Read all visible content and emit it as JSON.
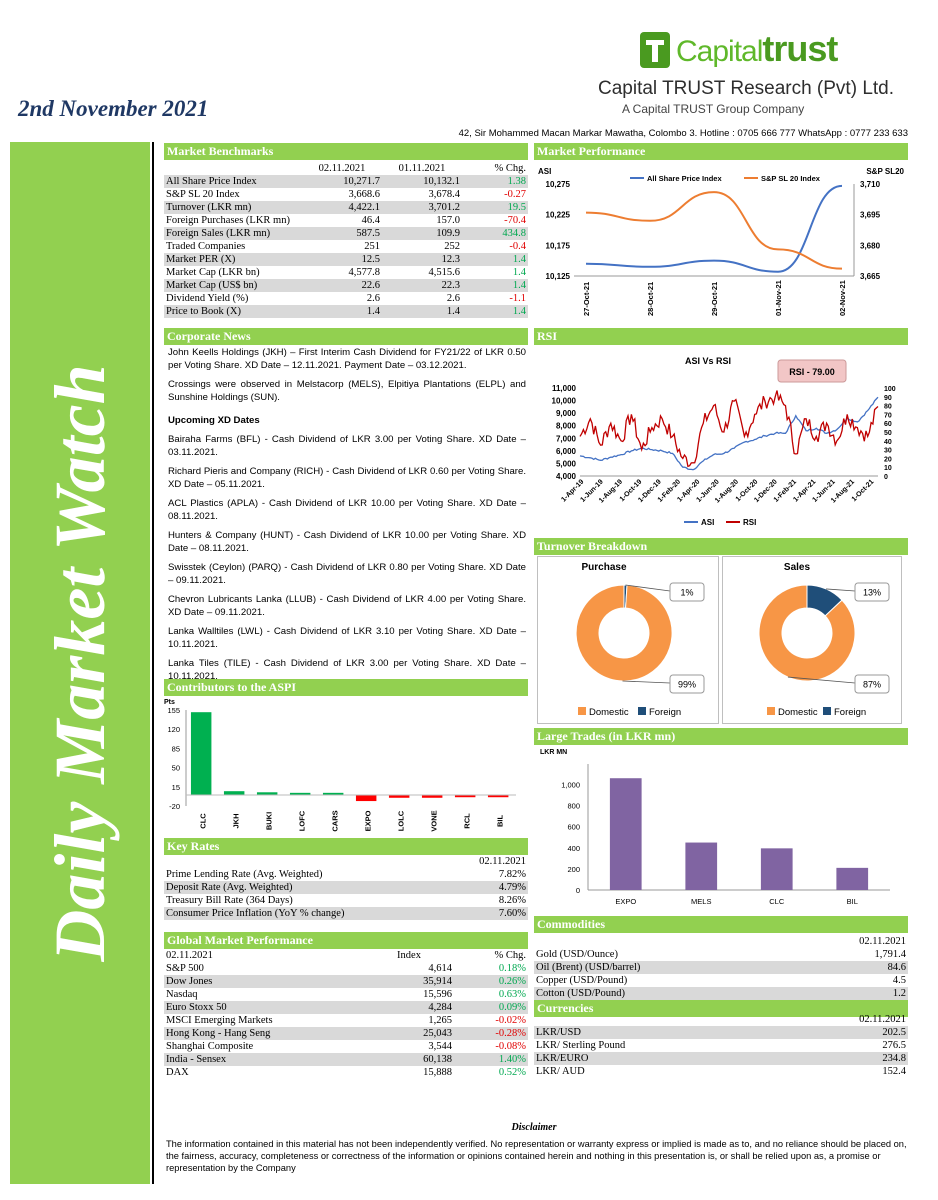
{
  "report": {
    "date": "2nd November 2021",
    "sidebar_title": "Daily Market Watch",
    "address": "42, Sir Mohammed Macan Markar Mawatha, Colombo 3. Hotline : 0705 666 777 WhatsApp : 0777 233 633"
  },
  "logo": {
    "brand_capital": "Capital",
    "brand_trust": "trust",
    "company": "Capital TRUST Research (Pvt) Ltd.",
    "tagline": "A Capital TRUST Group Company",
    "colors": {
      "green": "#4a9a20",
      "light_green": "#92d050"
    }
  },
  "market_benchmarks": {
    "title": "Market Benchmarks",
    "headers": [
      "",
      "02.11.2021",
      "01.11.2021",
      "% Chg."
    ],
    "rows": [
      [
        "All Share Price Index",
        "10,271.7",
        "10,132.1",
        "1.38"
      ],
      [
        "S&P SL 20 Index",
        "3,668.6",
        "3,678.4",
        "-0.27"
      ],
      [
        "Turnover (LKR mn)",
        "4,422.1",
        "3,701.2",
        "19.5"
      ],
      [
        "Foreign Purchases (LKR mn)",
        "46.4",
        "157.0",
        "-70.4"
      ],
      [
        "Foreign Sales (LKR mn)",
        "587.5",
        "109.9",
        "434.8"
      ],
      [
        "Traded Companies",
        "251",
        "252",
        "-0.4"
      ],
      [
        "Market PER (X)",
        "12.5",
        "12.3",
        "1.4"
      ],
      [
        "Market Cap (LKR bn)",
        "4,577.8",
        "4,515.6",
        "1.4"
      ],
      [
        "Market Cap (US$ bn)",
        "22.6",
        "22.3",
        "1.4"
      ],
      [
        "Dividend Yield (%)",
        "2.6",
        "2.6",
        "-1.1"
      ],
      [
        "Price to Book (X)",
        "1.4",
        "1.4",
        "1.4"
      ]
    ]
  },
  "market_performance": {
    "title": "Market Performance",
    "chart_data": {
      "type": "line",
      "x": [
        "27-Oct-21",
        "28-Oct-21",
        "29-Oct-21",
        "01-Nov-21",
        "02-Nov-21"
      ],
      "series": [
        {
          "name": "All Share Price Index",
          "axis": "left",
          "values": [
            10145,
            10140,
            10150,
            10132,
            10272
          ]
        },
        {
          "name": "S&P SL 20 Index",
          "axis": "right",
          "values": [
            3696,
            3692,
            3706,
            3678,
            3668.6
          ]
        }
      ],
      "left_label": "ASI",
      "right_label": "S&P SL20",
      "left_ticks": [
        "10,275",
        "10,225",
        "10,175",
        "10,125"
      ],
      "right_ticks": [
        "3,710",
        "3,695",
        "3,680",
        "3,665"
      ],
      "ylim_left": [
        10125,
        10275
      ],
      "ylim_right": [
        3665,
        3710
      ],
      "colors": [
        "#4472c4",
        "#ed7d31"
      ],
      "legend": "top"
    }
  },
  "rsi": {
    "title": "RSI",
    "chart_data": {
      "type": "line",
      "title": "ASI Vs RSI",
      "annotation": "RSI - 79.00",
      "x_ticks": [
        "1-Apr-19",
        "1-Jun-19",
        "1-Aug-19",
        "1-Oct-19",
        "1-Dec-19",
        "1-Feb-20",
        "1-Apr-20",
        "1-Jun-20",
        "1-Aug-20",
        "1-Oct-20",
        "1-Dec-20",
        "1-Feb-21",
        "1-Apr-21",
        "1-Jun-21",
        "1-Aug-21",
        "1-Oct-21"
      ],
      "left_ticks": [
        "11,000",
        "10,000",
        "9,000",
        "8,000",
        "7,000",
        "6,000",
        "5,000",
        "4,000"
      ],
      "right_ticks": [
        "100",
        "90",
        "80",
        "70",
        "60",
        "50",
        "40",
        "30",
        "20",
        "10",
        "0"
      ],
      "ylim_left": [
        4000,
        11000
      ],
      "ylim_right": [
        0,
        100
      ],
      "asi": [
        5600,
        5450,
        5250,
        5500,
        5700,
        6000,
        6200,
        6100,
        6000,
        5800,
        4700,
        4500,
        5200,
        5700,
        5800,
        6200,
        6700,
        6900,
        7200,
        7400,
        7400,
        8800,
        7600,
        7800,
        7400,
        7700,
        8600,
        8300,
        9200,
        10272
      ],
      "rsi": [
        45,
        65,
        35,
        60,
        40,
        70,
        30,
        55,
        65,
        45,
        20,
        15,
        60,
        80,
        50,
        85,
        45,
        70,
        85,
        90,
        80,
        25,
        65,
        45,
        60,
        40,
        70,
        55,
        45,
        79
      ],
      "series": [
        {
          "name": "ASI"
        },
        {
          "name": "RSI"
        }
      ],
      "colors": [
        "#4472c4",
        "#c00000"
      ],
      "legend": "bottom"
    }
  },
  "corporate_news": {
    "title": "Corporate News",
    "items": [
      "John Keells Holdings (JKH) – First Interim Cash Dividend for FY21/22 of LKR 0.50 per Voting Share. XD Date – 12.11.2021. Payment Date – 03.12.2021.",
      "Crossings were observed in Melstacorp (MELS), Elpitiya Plantations (ELPL) and Sunshine Holdings (SUN)."
    ],
    "upcoming_title": "Upcoming XD Dates",
    "upcoming": [
      "Bairaha Farms (BFL) - Cash Dividend of LKR 3.00 per Voting Share. XD Date – 03.11.2021.",
      "Richard Pieris and Company (RICH) - Cash Dividend of LKR 0.60 per Voting Share. XD Date – 05.11.2021.",
      "ACL Plastics (APLA) - Cash Dividend of LKR 10.00 per Voting Share. XD Date – 08.11.2021.",
      "Hunters & Company (HUNT) - Cash Dividend of LKR 10.00 per Voting Share. XD Date – 08.11.2021.",
      "Swisstek (Ceylon) (PARQ) - Cash Dividend of LKR 0.80 per Voting Share. XD Date – 09.11.2021.",
      "Chevron Lubricants Lanka (LLUB) - Cash Dividend of LKR 4.00 per Voting Share. XD Date – 09.11.2021.",
      "Lanka Walltiles (LWL) - Cash Dividend of LKR 3.10 per Voting Share. XD Date – 10.11.2021.",
      "Lanka Tiles (TILE) - Cash Dividend of LKR 3.00 per Voting Share. XD Date – 10.11.2021."
    ]
  },
  "turnover_breakdown": {
    "title": "Turnover Breakdown",
    "chart_data": [
      {
        "type": "pie",
        "title": "Purchase",
        "categories": [
          "Domestic",
          "Foreign"
        ],
        "values": [
          99,
          1
        ],
        "labels": [
          "99%",
          "1%"
        ],
        "colors": [
          "#f79646",
          "#1f4e79"
        ]
      },
      {
        "type": "pie",
        "title": "Sales",
        "categories": [
          "Domestic",
          "Foreign"
        ],
        "values": [
          87,
          13
        ],
        "labels": [
          "87%",
          "13%"
        ],
        "colors": [
          "#f79646",
          "#1f4e79"
        ]
      }
    ]
  },
  "contributors": {
    "title": "Contributors to the ASPI",
    "chart_data": {
      "type": "bar",
      "ylabel": "Pts",
      "categories": [
        "CLC",
        "JKH",
        "BUKI",
        "LOFC",
        "CARS",
        "EXPO",
        "LOLC",
        "VONE",
        "RCL",
        "BIL"
      ],
      "values": [
        151,
        7,
        5,
        4,
        4,
        -11,
        -5,
        -5,
        -4,
        -4
      ],
      "y_ticks": [
        "155",
        "120",
        "85",
        "50",
        "15",
        "-20"
      ],
      "ylim": [
        -20,
        155
      ],
      "colors": {
        "positive": "#00b050",
        "negative": "#ff0000"
      }
    }
  },
  "large_trades": {
    "title": "Large Trades (in LKR mn)",
    "chart_data": {
      "type": "bar",
      "ylabel": "LKR MN",
      "categories": [
        "EXPO",
        "MELS",
        "CLC",
        "BIL"
      ],
      "values": [
        1060,
        450,
        395,
        210
      ],
      "y_ticks": [
        "1,000",
        "800",
        "600",
        "400",
        "200",
        "0"
      ],
      "ylim": [
        0,
        1100
      ],
      "colors": {
        "bar": "#8064a2"
      }
    }
  },
  "key_rates": {
    "title": "Key Rates",
    "date": "02.11.2021",
    "rows": [
      [
        "Prime Lending Rate (Avg. Weighted)",
        "7.82%"
      ],
      [
        "Deposit Rate (Avg. Weighted)",
        "4.79%"
      ],
      [
        "Treasury Bill Rate (364 Days)",
        "8.26%"
      ],
      [
        "Consumer Price Inflation (YoY % change)",
        "7.60%"
      ]
    ]
  },
  "commodities": {
    "title": "Commodities",
    "date": "02.11.2021",
    "rows": [
      [
        "Gold (USD/Ounce)",
        "1,791.4"
      ],
      [
        "Oil (Brent) (USD/barrel)",
        "84.6"
      ],
      [
        "Copper (USD/Pound)",
        "4.5"
      ],
      [
        "Cotton (USD/Pound)",
        "1.2"
      ]
    ]
  },
  "global_markets": {
    "title": "Global Market Performance",
    "headers": [
      "02.11.2021",
      "Index",
      "% Chg."
    ],
    "rows": [
      [
        "S&P 500",
        "4,614",
        "0.18%"
      ],
      [
        "Dow Jones",
        "35,914",
        "0.26%"
      ],
      [
        "Nasdaq",
        "15,596",
        "0.63%"
      ],
      [
        "Euro Stoxx 50",
        "4,284",
        "0.09%"
      ],
      [
        "MSCI Emerging Markets",
        "1,265",
        "-0.02%"
      ],
      [
        "Hong Kong - Hang Seng",
        "25,043",
        "-0.28%"
      ],
      [
        "Shanghai Composite",
        "3,544",
        "-0.08%"
      ],
      [
        "India - Sensex",
        "60,138",
        "1.40%"
      ],
      [
        "DAX",
        "15,888",
        "0.52%"
      ]
    ]
  },
  "currencies": {
    "title": "Currencies",
    "date": "02.11.2021",
    "rows": [
      [
        "LKR/USD",
        "202.5"
      ],
      [
        "LKR/ Sterling Pound",
        "276.5"
      ],
      [
        "LKR/EURO",
        "234.8"
      ],
      [
        "LKR/ AUD",
        "152.4"
      ]
    ]
  },
  "disclaimer": {
    "title": "Disclaimer",
    "text": "The information contained in this material has not been independently verified. No representation or warranty express or implied is made as to, and no reliance should be placed on, the fairness, accuracy, completeness or correctness of the information or opinions contained herein and nothing in this presentation is, or shall be relied upon as, a promise or representation by the Company"
  }
}
